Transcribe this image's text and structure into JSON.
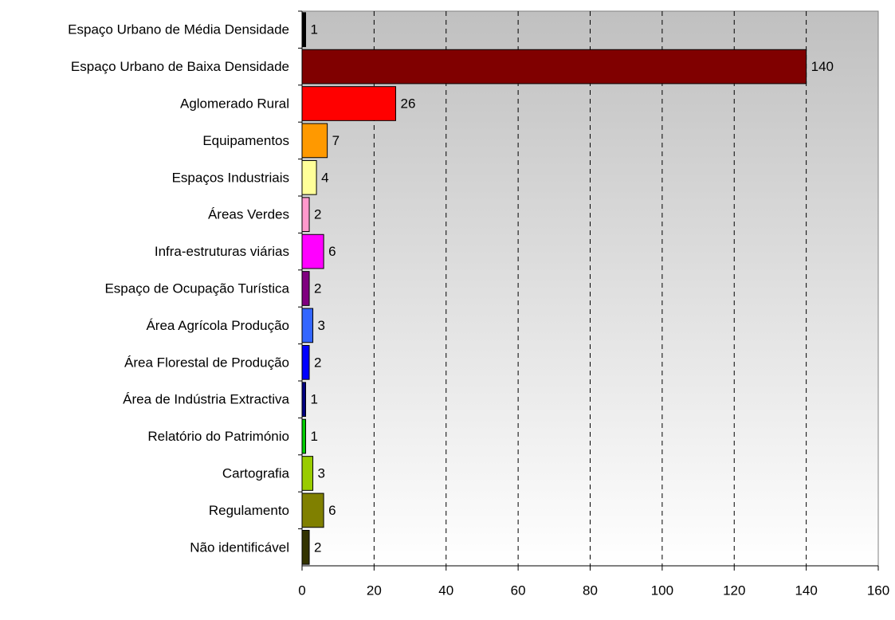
{
  "chart_data": {
    "type": "barh",
    "categories": [
      "Espaço Urbano de Média Densidade",
      "Espaço Urbano de Baixa Densidade",
      "Aglomerado Rural",
      "Equipamentos",
      "Espaços Industriais",
      "Áreas Verdes",
      "Infra-estruturas viárias",
      "Espaço de Ocupação Turística",
      "Área Agrícola Produção",
      "Área Florestal de Produção",
      "Área de Indústria Extractiva",
      "Relatório do Património",
      "Cartografia",
      "Regulamento",
      "Não identificável"
    ],
    "values": [
      1,
      140,
      26,
      7,
      4,
      2,
      6,
      2,
      3,
      2,
      1,
      1,
      3,
      6,
      2
    ],
    "colors": [
      "#000000",
      "#800000",
      "#ff0000",
      "#ff9900",
      "#ffff99",
      "#ff99cc",
      "#ff00ff",
      "#800080",
      "#3366ff",
      "#0000ff",
      "#000080",
      "#00cc00",
      "#99cc00",
      "#808000",
      "#333300"
    ],
    "xlim": [
      0,
      160
    ],
    "xticks": [
      0,
      20,
      40,
      60,
      80,
      100,
      120,
      140,
      160
    ],
    "grid": true
  }
}
